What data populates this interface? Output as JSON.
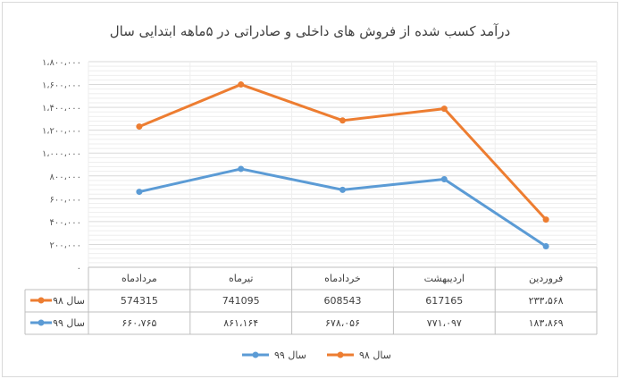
{
  "chart_data": {
    "type": "line",
    "title": "درآمد کسب شده از فروش های داخلی و صادراتی در ۵ماهه ابتدایی سال",
    "categories": [
      "مردادماه",
      "تیرماه",
      "خردادماه",
      "اردیبهشت",
      "فروردین"
    ],
    "y_ticks": [
      "۱،۸۰۰،۰۰۰",
      "۱،۶۰۰،۰۰۰",
      "۱،۴۰۰،۰۰۰",
      "۱،۲۰۰،۰۰۰",
      "۱،۰۰۰،۰۰۰",
      "۸۰۰،۰۰۰",
      "۶۰۰،۰۰۰",
      "۴۰۰،۰۰۰",
      "۲۰۰،۰۰۰",
      "۰"
    ],
    "ylim": [
      0,
      1800000
    ],
    "grid": true,
    "legend_position": "bottom",
    "series": [
      {
        "name": "سال ۹۸",
        "color": "#ED7D31",
        "values": [
          1232000,
          1600000,
          1285000,
          1388000,
          418000
        ],
        "table_labels": [
          "574315",
          "741095",
          "608543",
          "617165",
          "۲۳۳،۵۶۸"
        ]
      },
      {
        "name": "سال ۹۹",
        "color": "#5B9BD5",
        "values": [
          660765,
          861164,
          678056,
          771097,
          183869
        ],
        "table_labels": [
          "۶۶۰،۷۶۵",
          "۸۶۱،۱۶۴",
          "۶۷۸،۰۵۶",
          "۷۷۱،۰۹۷",
          "۱۸۳،۸۶۹"
        ]
      }
    ]
  }
}
